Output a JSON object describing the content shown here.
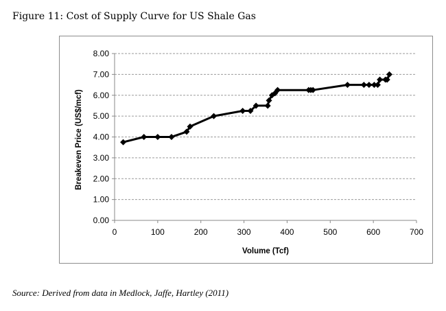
{
  "figure_title": "Figure 11: Cost of Supply Curve for US Shale Gas",
  "source_note": "Source: Derived from data in Medlock, Jaffe, Hartley (2011)",
  "chart_data": {
    "type": "line",
    "xlabel": "Volume (Tcf)",
    "ylabel": "Breakeven Price (US$/mcf)",
    "xlim": [
      0,
      700
    ],
    "ylim": [
      0,
      8
    ],
    "x_ticks": [
      "0",
      "100",
      "200",
      "300",
      "400",
      "500",
      "600",
      "700"
    ],
    "y_ticks": [
      "0.00",
      "1.00",
      "2.00",
      "3.00",
      "4.00",
      "5.00",
      "6.00",
      "7.00",
      "8.00"
    ],
    "grid": "horizontal-dashed",
    "series": [
      {
        "color": "#000000",
        "marker": "diamond",
        "x": [
          20,
          68,
          100,
          132,
          167,
          175,
          230,
          297,
          315,
          328,
          355,
          358,
          365,
          372,
          378,
          450,
          455,
          460,
          540,
          578,
          590,
          602,
          610,
          615,
          628,
          632,
          637
        ],
        "y": [
          3.75,
          4.0,
          4.0,
          4.0,
          4.25,
          4.5,
          5.0,
          5.25,
          5.25,
          5.5,
          5.5,
          5.75,
          6.0,
          6.1,
          6.25,
          6.25,
          6.25,
          6.25,
          6.5,
          6.5,
          6.5,
          6.5,
          6.5,
          6.75,
          6.75,
          6.75,
          7.0
        ]
      }
    ]
  }
}
